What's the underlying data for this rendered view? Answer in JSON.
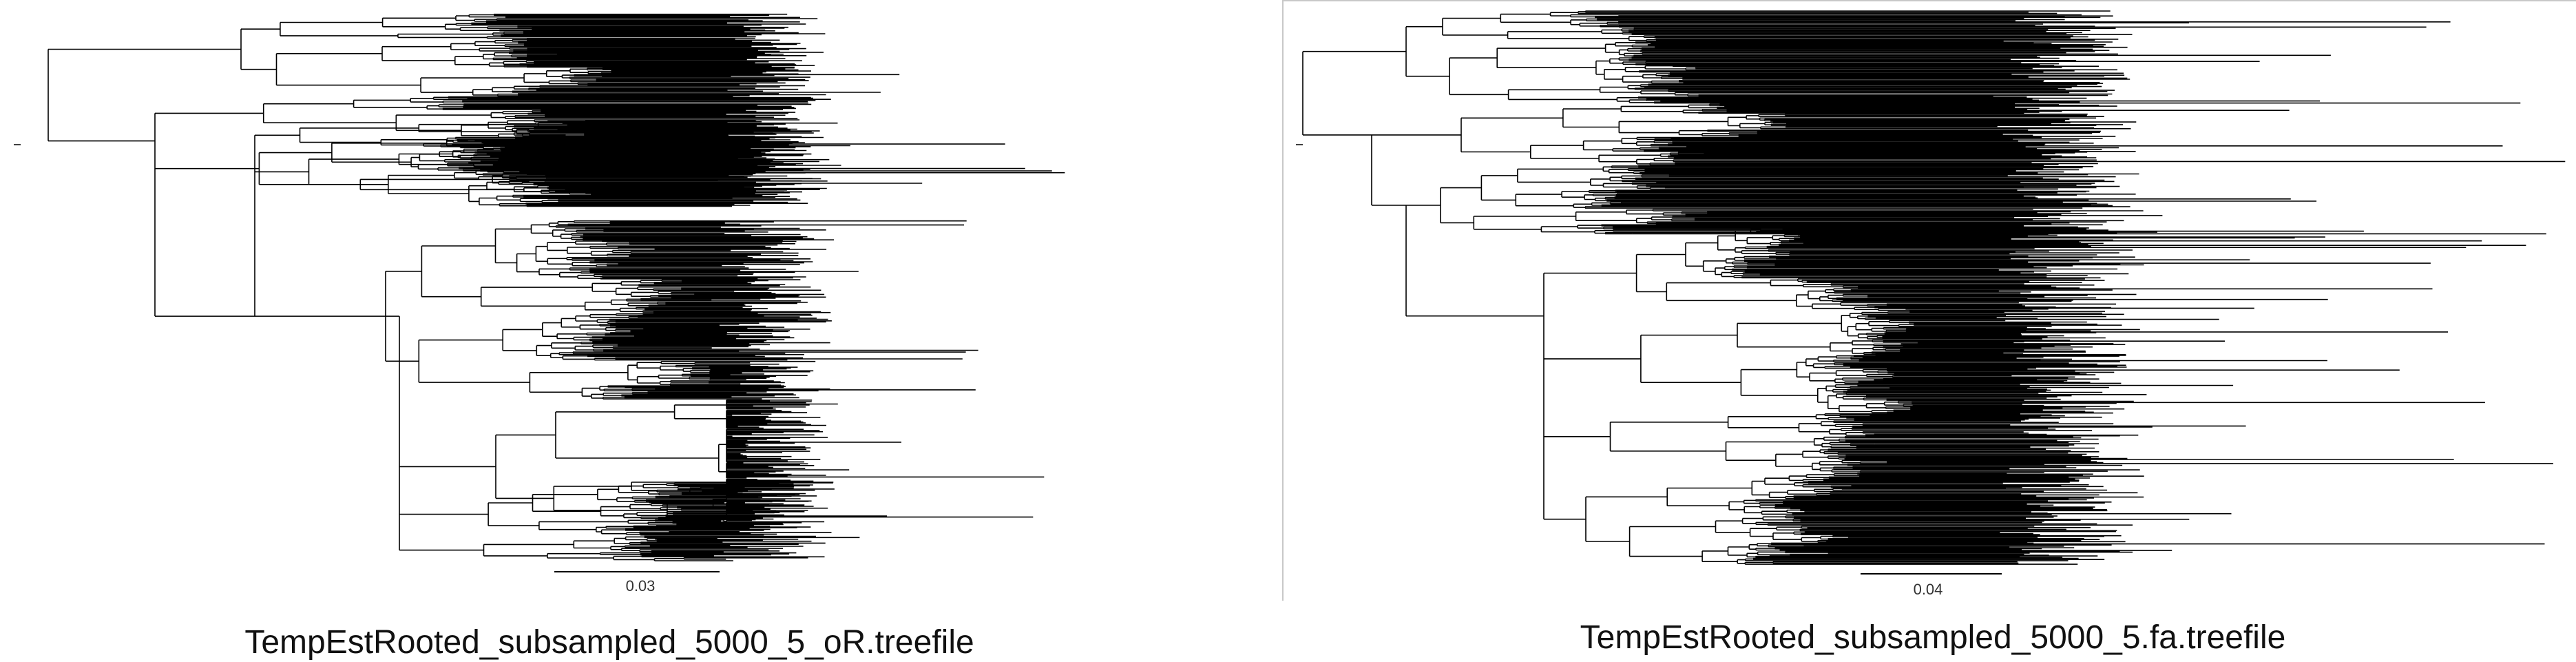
{
  "panels": [
    {
      "id": "left",
      "filename": "TempEstRooted_subsampled_5000_5_oR.treefile",
      "scale_bar": {
        "label": "0.03",
        "value": 0.03
      }
    },
    {
      "id": "right",
      "filename": "TempEstRooted_subsampled_5000_5.fa.treefile",
      "scale_bar": {
        "label": "0.04",
        "value": 0.04
      }
    }
  ],
  "colors": {
    "branch": "#000000",
    "background": "#ffffff",
    "frame": "#c8c8c8"
  }
}
